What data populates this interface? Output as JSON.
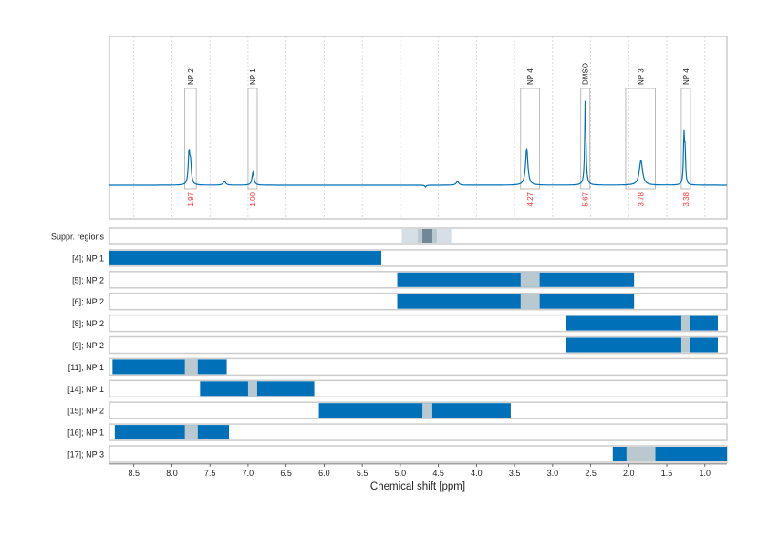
{
  "chart_data": {
    "type": "line",
    "xlabel": "Chemical shift [ppm]",
    "xlim": [
      8.82,
      0.71
    ],
    "x_reversed": true,
    "x_ticks": [
      8.5,
      8.0,
      7.5,
      7.0,
      6.5,
      6.0,
      5.5,
      5.0,
      4.5,
      4.0,
      3.5,
      3.0,
      2.5,
      2.0,
      1.5,
      1.0
    ],
    "grid": "vertical dotted",
    "colors": {
      "spectrum": "#0070b8",
      "bar": "#0070b8",
      "gap": "#bac8d0",
      "integral_label": "#ff3030",
      "box": "#aaaaaa",
      "frame": "#cccccc"
    },
    "spectrum_peaks": [
      {
        "ppm": 7.775,
        "intensity": 0.34,
        "width": 0.012
      },
      {
        "ppm": 7.755,
        "intensity": 0.22,
        "width": 0.012
      },
      {
        "ppm": 7.31,
        "intensity": 0.04,
        "width": 0.02
      },
      {
        "ppm": 6.935,
        "intensity": 0.14,
        "width": 0.015
      },
      {
        "ppm": 4.67,
        "intensity": -0.02,
        "width": 0.01
      },
      {
        "ppm": 4.25,
        "intensity": 0.04,
        "width": 0.02
      },
      {
        "ppm": 3.34,
        "intensity": 0.4,
        "width": 0.018
      },
      {
        "ppm": 2.57,
        "intensity": 1.0,
        "width": 0.009
      },
      {
        "ppm": 1.84,
        "intensity": 0.27,
        "width": 0.025
      },
      {
        "ppm": 1.275,
        "intensity": 0.53,
        "width": 0.008
      },
      {
        "ppm": 1.26,
        "intensity": 0.35,
        "width": 0.008
      }
    ],
    "annotations": [
      {
        "label": "NP 2",
        "from": 7.83,
        "to": 7.68,
        "integral": "1.97"
      },
      {
        "label": "NP 1",
        "from": 7.0,
        "to": 6.88,
        "integral": "1.00"
      },
      {
        "label": "NP 4",
        "from": 3.42,
        "to": 3.17,
        "integral": "4.27"
      },
      {
        "label": "DMSO",
        "from": 2.63,
        "to": 2.51,
        "integral": "5.67"
      },
      {
        "label": "NP 3",
        "from": 2.04,
        "to": 1.65,
        "integral": "3.78"
      },
      {
        "label": "NP 4",
        "from": 1.31,
        "to": 1.19,
        "integral": "3.38"
      }
    ],
    "suppressed_regions": {
      "label": "Suppr. regions",
      "bands": [
        {
          "from": 4.98,
          "to": 4.32,
          "color": "#d6dfe5"
        },
        {
          "from": 4.77,
          "to": 4.52,
          "color": "#bac8d0"
        },
        {
          "from": 4.71,
          "to": 4.58,
          "color": "#6f8797"
        }
      ]
    },
    "rows": [
      {
        "label": "[4]; NP 1",
        "from": 8.82,
        "to": 5.25,
        "gap": null
      },
      {
        "label": "[5]; NP 2",
        "from": 5.04,
        "to": 1.93,
        "gap": [
          3.42,
          3.17
        ]
      },
      {
        "label": "[6]; NP 2",
        "from": 5.04,
        "to": 1.93,
        "gap": [
          3.42,
          3.17
        ]
      },
      {
        "label": "[8]; NP 2",
        "from": 2.82,
        "to": 0.83,
        "gap": [
          1.31,
          1.19
        ]
      },
      {
        "label": "[9]; NP 2",
        "from": 2.82,
        "to": 0.83,
        "gap": [
          1.31,
          1.19
        ]
      },
      {
        "label": "[11]; NP 1",
        "from": 8.78,
        "to": 7.28,
        "gap": [
          7.83,
          7.66
        ]
      },
      {
        "label": "[14]; NP 1",
        "from": 7.63,
        "to": 6.13,
        "gap": [
          7.0,
          6.88
        ]
      },
      {
        "label": "[15]; NP 2",
        "from": 6.07,
        "to": 3.55,
        "gap": [
          4.71,
          4.58
        ]
      },
      {
        "label": "[16]; NP 1",
        "from": 8.75,
        "to": 7.25,
        "gap": [
          7.83,
          7.66
        ]
      },
      {
        "label": "[17]; NP 3",
        "from": 2.21,
        "to": 0.71,
        "gap": [
          2.03,
          1.65
        ]
      }
    ]
  }
}
